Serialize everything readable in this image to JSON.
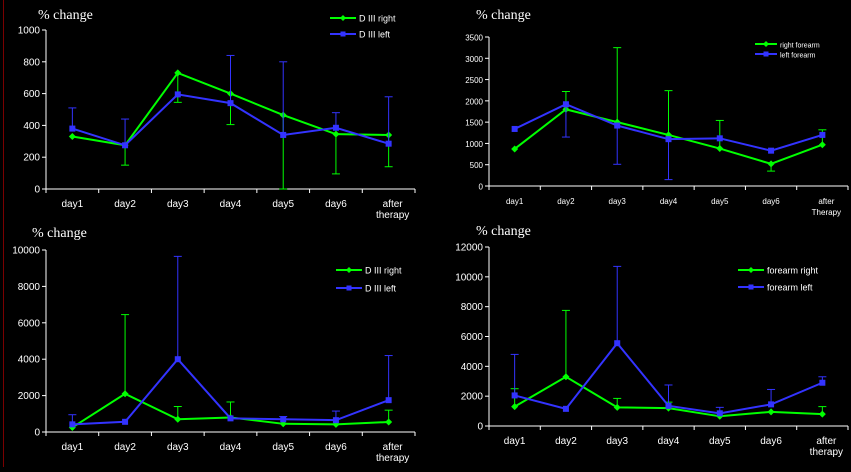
{
  "chart_data": [
    {
      "type": "line",
      "ylabel": "% change",
      "categories": [
        "day1",
        "day2",
        "day3",
        "day4",
        "day5",
        "day6",
        "after therapy"
      ],
      "ylim": [
        0,
        1000
      ],
      "yticks": [
        0,
        200,
        400,
        600,
        800,
        1000
      ],
      "legend": "top-right",
      "series": [
        {
          "name": "D III right",
          "color": "#00ff00",
          "values": [
            330,
            275,
            730,
            600,
            465,
            345,
            340
          ],
          "err": [
            null,
            [
              150,
              null
            ],
            [
              545,
              null
            ],
            [
              405,
              null
            ],
            [
              0,
              null
            ],
            [
              95,
              null
            ],
            [
              140,
              null
            ]
          ]
        },
        {
          "name": "D III left",
          "color": "#3333ff",
          "values": [
            380,
            275,
            595,
            540,
            340,
            385,
            285
          ],
          "err": [
            [
              null,
              510
            ],
            [
              null,
              440
            ],
            [
              null,
              null
            ],
            [
              null,
              840
            ],
            [
              null,
              800
            ],
            [
              null,
              480
            ],
            [
              null,
              580
            ]
          ]
        }
      ]
    },
    {
      "type": "line",
      "ylabel": "% change",
      "categories": [
        "day1",
        "day2",
        "day3",
        "day4",
        "day5",
        "day6",
        "after Therapy"
      ],
      "ylim": [
        0,
        3500
      ],
      "yticks": [
        0,
        500,
        1000,
        1500,
        2000,
        2500,
        3000,
        3500
      ],
      "legend": "top-right",
      "series": [
        {
          "name": "right forearm",
          "color": "#00ff00",
          "values": [
            870,
            1800,
            1500,
            1200,
            880,
            520,
            970
          ],
          "err": [
            null,
            [
              null,
              2220
            ],
            [
              null,
              3250
            ],
            [
              null,
              2240
            ],
            [
              null,
              1540
            ],
            [
              350,
              null
            ],
            [
              null,
              1320
            ]
          ]
        },
        {
          "name": "left forearm",
          "color": "#3333ff",
          "values": [
            1340,
            1920,
            1420,
            1100,
            1120,
            830,
            1200
          ],
          "err": [
            null,
            [
              1150,
              null
            ],
            [
              510,
              null
            ],
            [
              150,
              null
            ],
            [
              null,
              null
            ],
            [
              null,
              null
            ],
            [
              null,
              null
            ]
          ]
        }
      ]
    },
    {
      "type": "line",
      "ylabel": "% change",
      "categories": [
        "day1",
        "day2",
        "day3",
        "day4",
        "day5",
        "day6",
        "after therapy"
      ],
      "ylim": [
        0,
        10000
      ],
      "yticks": [
        0,
        2000,
        4000,
        6000,
        8000,
        10000
      ],
      "legend": "top-right",
      "series": [
        {
          "name": "D III right",
          "color": "#00ff00",
          "values": [
            250,
            2100,
            700,
            800,
            450,
            420,
            550
          ],
          "err": [
            null,
            [
              null,
              6450
            ],
            [
              null,
              1400
            ],
            [
              null,
              1650
            ],
            [
              null,
              null
            ],
            [
              null,
              null
            ],
            [
              null,
              1200
            ]
          ]
        },
        {
          "name": "D III left",
          "color": "#3333ff",
          "values": [
            420,
            560,
            4000,
            750,
            700,
            650,
            1750
          ],
          "err": [
            [
              null,
              950
            ],
            [
              null,
              null
            ],
            [
              null,
              9650
            ],
            [
              null,
              null
            ],
            [
              null,
              850
            ],
            [
              null,
              1150
            ],
            [
              null,
              4200
            ]
          ]
        }
      ]
    },
    {
      "type": "line",
      "ylabel": "% change",
      "categories": [
        "day1",
        "day2",
        "day3",
        "day4",
        "day5",
        "day6",
        "after therapy"
      ],
      "ylim": [
        0,
        12000
      ],
      "yticks": [
        0,
        2000,
        4000,
        6000,
        8000,
        10000,
        12000
      ],
      "legend": "top-right",
      "series": [
        {
          "name": "forearm right",
          "color": "#00ff00",
          "values": [
            1300,
            3300,
            1250,
            1200,
            650,
            950,
            800
          ],
          "err": [
            [
              null,
              2500
            ],
            [
              null,
              7750
            ],
            [
              null,
              1850
            ],
            [
              null,
              1600
            ],
            [
              null,
              null
            ],
            [
              null,
              null
            ],
            [
              null,
              1300
            ]
          ]
        },
        {
          "name": "forearm left",
          "color": "#3333ff",
          "values": [
            2050,
            1150,
            5550,
            1350,
            850,
            1450,
            2900
          ],
          "err": [
            [
              null,
              4800
            ],
            [
              null,
              null
            ],
            [
              null,
              10700
            ],
            [
              null,
              2750
            ],
            [
              null,
              1250
            ],
            [
              null,
              2450
            ],
            [
              null,
              3300
            ]
          ]
        }
      ]
    }
  ]
}
